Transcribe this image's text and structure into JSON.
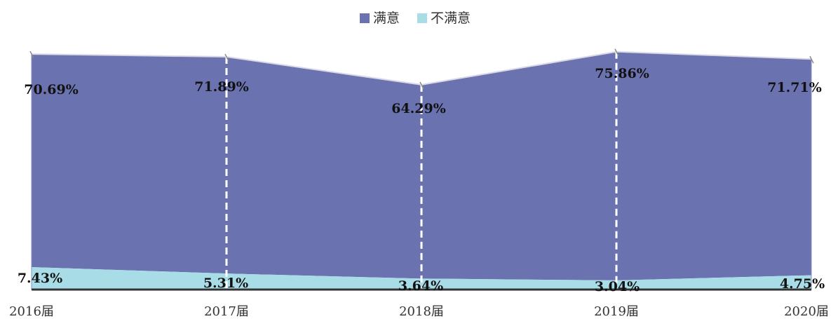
{
  "chart_data": {
    "type": "area",
    "stacked": true,
    "categories": [
      "2016届",
      "2017届",
      "2018届",
      "2019届",
      "2020届"
    ],
    "series": [
      {
        "name": "不满意",
        "values": [
          7.43,
          5.31,
          3.64,
          3.04,
          4.75
        ],
        "color": "#a8dde8"
      },
      {
        "name": "满意",
        "values": [
          70.69,
          71.89,
          64.29,
          75.86,
          71.71
        ],
        "color": "#6b72b0"
      }
    ],
    "legend_position": "top-center",
    "ylim": [
      0,
      100
    ],
    "grid": false
  },
  "legend": [
    {
      "label": "满意",
      "color": "#6b72b0"
    },
    {
      "label": "不满意",
      "color": "#a8dde8"
    }
  ],
  "labels": {
    "satisfied": [
      "70.69%",
      "71.89%",
      "64.29%",
      "75.86%",
      "71.71%"
    ],
    "unsatisfied": [
      "7.43%",
      "5.31%",
      "3.64%",
      "3.04%",
      "4.75%"
    ]
  }
}
